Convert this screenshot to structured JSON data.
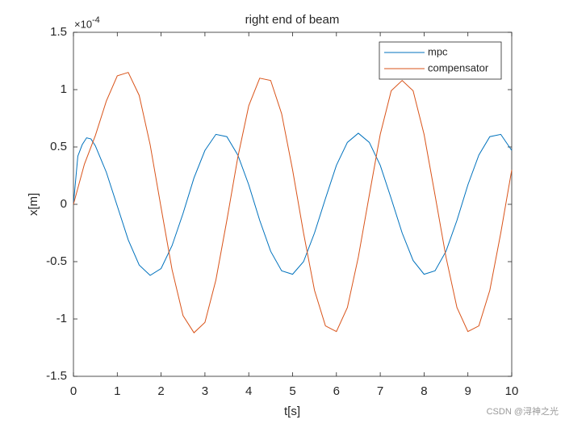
{
  "chart_data": {
    "type": "line",
    "title": "right end of beam",
    "x_label": "t[s]",
    "y_label": "x[m]",
    "y_exponent": {
      "base": "×10",
      "power": "-4"
    },
    "watermark": "CSDN @浔神之光",
    "xlim": [
      0,
      10
    ],
    "xticks": [
      0,
      1,
      2,
      3,
      4,
      5,
      6,
      7,
      8,
      9,
      10
    ],
    "ylim": [
      -1.5,
      1.5
    ],
    "yticks": [
      -1.5,
      -1,
      -0.5,
      0,
      0.5,
      1,
      1.5
    ],
    "legend": "upper right",
    "series": [
      {
        "name": "mpc",
        "color": "#0072bd",
        "x": [
          0,
          0.1,
          0.2,
          0.3,
          0.4,
          0.5,
          0.75,
          1,
          1.25,
          1.5,
          1.75,
          2,
          2.25,
          2.5,
          2.75,
          3,
          3.25,
          3.5,
          3.75,
          4,
          4.25,
          4.5,
          4.75,
          5,
          5.25,
          5.5,
          5.75,
          6,
          6.25,
          6.5,
          6.75,
          7,
          7.25,
          7.5,
          7.75,
          8,
          8.25,
          8.5,
          8.75,
          9,
          9.25,
          9.5,
          9.75,
          10
        ],
        "values": [
          0,
          0.42,
          0.52,
          0.58,
          0.57,
          0.51,
          0.28,
          -0.015,
          -0.31,
          -0.53,
          -0.62,
          -0.56,
          -0.36,
          -0.08,
          0.23,
          0.47,
          0.61,
          0.59,
          0.43,
          0.17,
          -0.14,
          -0.41,
          -0.58,
          -0.61,
          -0.5,
          -0.25,
          0.05,
          0.34,
          0.54,
          0.62,
          0.54,
          0.34,
          0.05,
          -0.25,
          -0.49,
          -0.61,
          -0.58,
          -0.41,
          -0.14,
          0.17,
          0.43,
          0.59,
          0.61,
          0.47
        ]
      },
      {
        "name": "compensator",
        "color": "#d95319",
        "x": [
          0,
          0.25,
          0.5,
          0.75,
          1,
          1.25,
          1.5,
          1.75,
          2,
          2.25,
          2.5,
          2.75,
          3,
          3.25,
          3.5,
          3.75,
          4,
          4.25,
          4.5,
          4.75,
          5,
          5.25,
          5.5,
          5.75,
          6,
          6.25,
          6.5,
          6.75,
          7,
          7.25,
          7.5,
          7.75,
          8,
          8.25,
          8.5,
          8.75,
          9,
          9.25,
          9.5,
          9.75,
          10
        ],
        "values": [
          0,
          0.35,
          0.6,
          0.9,
          1.12,
          1.15,
          0.95,
          0.52,
          -0.03,
          -0.57,
          -0.97,
          -1.12,
          -1.03,
          -0.66,
          -0.14,
          0.41,
          0.86,
          1.1,
          1.08,
          0.79,
          0.3,
          -0.25,
          -0.75,
          -1.06,
          -1.11,
          -0.9,
          -0.46,
          0.08,
          0.61,
          0.99,
          1.08,
          0.99,
          0.61,
          0.08,
          -0.46,
          -0.9,
          -1.11,
          -1.06,
          -0.75,
          -0.25,
          0.3
        ]
      }
    ]
  }
}
